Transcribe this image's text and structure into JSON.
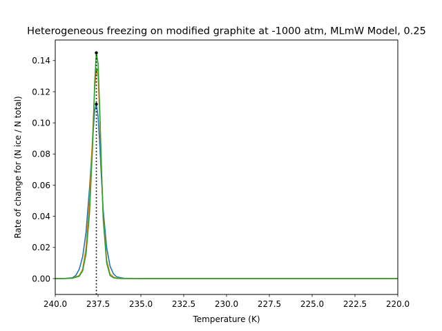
{
  "chart_data": {
    "type": "line",
    "title": "Heterogeneous freezing on modified graphite at -1000 atm, MLmW Model, 0.25",
    "xlabel": "Temperature (K)",
    "ylabel": "Rate of change for (N ice / N total)",
    "xlim": [
      240.0,
      220.0
    ],
    "ylim": [
      -0.0102,
      0.1532
    ],
    "x_ticks": [
      240.0,
      237.5,
      235.0,
      232.5,
      230.0,
      227.5,
      225.0,
      222.5,
      220.0
    ],
    "x_tick_labels": [
      "240.0",
      "237.5",
      "235.0",
      "232.5",
      "230.0",
      "227.5",
      "225.0",
      "222.5",
      "220.0"
    ],
    "y_ticks": [
      0.0,
      0.02,
      0.04,
      0.06,
      0.08,
      0.1,
      0.12,
      0.14
    ],
    "y_tick_labels": [
      "0.00",
      "0.02",
      "0.04",
      "0.06",
      "0.08",
      "0.10",
      "0.12",
      "0.14"
    ],
    "grid": false,
    "legend": "none",
    "series": [
      {
        "color": "#1f77b4",
        "x": [
          240.0,
          239.5,
          239.0,
          238.8,
          238.6,
          238.4,
          238.2,
          238.0,
          237.8,
          237.7,
          237.6,
          237.5,
          237.4,
          237.3,
          237.2,
          237.0,
          236.8,
          236.6,
          236.4,
          236.0,
          235.0,
          230.0,
          225.0,
          220.0
        ],
        "y": [
          0.0,
          0.0,
          0.0005,
          0.002,
          0.006,
          0.014,
          0.03,
          0.058,
          0.092,
          0.108,
          0.112,
          0.104,
          0.086,
          0.064,
          0.044,
          0.02,
          0.008,
          0.003,
          0.001,
          0.0002,
          0.0,
          0.0,
          0.0,
          0.0
        ]
      },
      {
        "color": "#ff7f0e",
        "x": [
          240.0,
          239.5,
          239.0,
          238.6,
          238.4,
          238.2,
          238.0,
          237.8,
          237.7,
          237.6,
          237.5,
          237.4,
          237.3,
          237.2,
          237.0,
          236.8,
          236.6,
          236.4,
          236.0,
          235.0,
          230.0,
          225.0,
          220.0
        ],
        "y": [
          0.0,
          0.0,
          0.0002,
          0.002,
          0.006,
          0.02,
          0.05,
          0.096,
          0.122,
          0.134,
          0.13,
          0.104,
          0.07,
          0.04,
          0.012,
          0.003,
          0.001,
          0.0002,
          0.0,
          0.0,
          0.0,
          0.0,
          0.0
        ]
      },
      {
        "color": "#2ca02c",
        "x": [
          240.0,
          239.5,
          239.0,
          238.6,
          238.4,
          238.2,
          238.0,
          237.8,
          237.7,
          237.6,
          237.5,
          237.4,
          237.3,
          237.2,
          237.0,
          236.8,
          236.6,
          236.4,
          236.0,
          235.0,
          230.0,
          225.0,
          220.0
        ],
        "y": [
          0.0,
          0.0,
          0.0002,
          0.0015,
          0.005,
          0.016,
          0.042,
          0.09,
          0.125,
          0.145,
          0.138,
          0.108,
          0.07,
          0.038,
          0.01,
          0.002,
          0.0005,
          0.0001,
          0.0,
          0.0,
          0.0,
          0.0,
          0.0
        ]
      }
    ],
    "peak_markers": [
      {
        "x": 237.6,
        "y": 0.112,
        "color": "#000000"
      },
      {
        "x": 237.6,
        "y": 0.134,
        "color": "#2ca02c"
      },
      {
        "x": 237.6,
        "y": 0.145,
        "color": "#000000"
      }
    ],
    "vline": {
      "x": 237.6,
      "y_from": -0.0102,
      "y_to": 0.1455,
      "color": "#000000",
      "style": "dotted"
    }
  }
}
